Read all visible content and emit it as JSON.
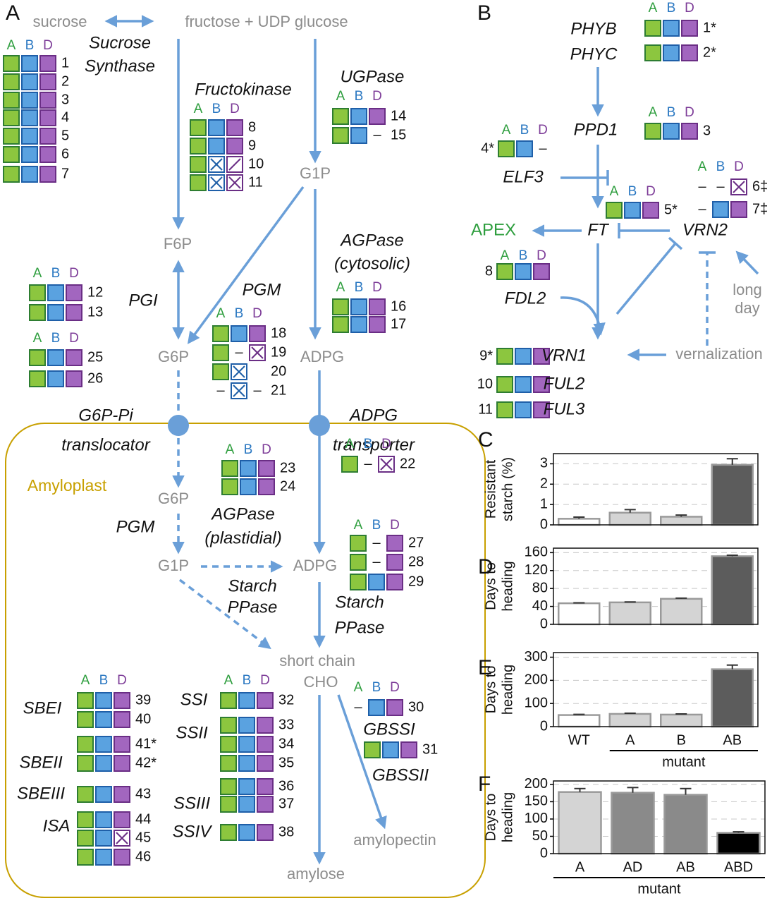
{
  "genomes": [
    {
      "label": "A",
      "text_color": "#2e9e3e",
      "fill": "#8cc63f",
      "stroke": "#2e7d32"
    },
    {
      "label": "B",
      "text_color": "#2b78c2",
      "fill": "#5aa2e0",
      "stroke": "#1f5fa8"
    },
    {
      "label": "D",
      "text_color": "#7d3c98",
      "fill": "#a266bf",
      "stroke": "#6a2e85"
    }
  ],
  "deleted_mark": "–",
  "panel_a": {
    "label": "A",
    "compartment": "Amyloplast",
    "metabolites": [
      "sucrose",
      "fructose + UDP glucose",
      "G1P",
      "F6P",
      "G6P",
      "ADPG",
      "G6P",
      "G1P",
      "ADPG",
      "short chain",
      "CHO",
      "amylopectin",
      "amylose"
    ],
    "enzymes": [
      [
        "Sucrose",
        "Synthase"
      ],
      [
        "Fructokinase"
      ],
      [
        "UGPase"
      ],
      [
        "PGI"
      ],
      [
        "PGM"
      ],
      [
        "AGPase",
        "(cytosolic)"
      ],
      [
        "G6P-Pi",
        "translocator"
      ],
      [
        "ADPG",
        "transporter"
      ],
      [
        "AGPase",
        "(plastidial)"
      ],
      [
        "PGM"
      ],
      [
        "Starch",
        "PPase"
      ],
      [
        "Starch",
        "PPase"
      ],
      [
        "SBEI"
      ],
      [
        "SBEII"
      ],
      [
        "SBEIII"
      ],
      [
        "ISA"
      ],
      [
        "SSI"
      ],
      [
        "SSII"
      ],
      [
        "SSIII"
      ],
      [
        "SSIV"
      ],
      [
        "GBSSI"
      ],
      [
        "GBSSII"
      ]
    ],
    "gene_groups": [
      {
        "rows": [
          {
            "label": "1",
            "states": [
              "present",
              "present",
              "present"
            ]
          },
          {
            "label": "2",
            "states": [
              "present",
              "present",
              "present"
            ]
          },
          {
            "label": "3",
            "states": [
              "present",
              "present",
              "present"
            ]
          },
          {
            "label": "4",
            "states": [
              "present",
              "present",
              "present"
            ]
          },
          {
            "label": "5",
            "states": [
              "present",
              "present",
              "present"
            ]
          },
          {
            "label": "6",
            "states": [
              "present",
              "present",
              "present"
            ]
          },
          {
            "label": "7",
            "states": [
              "present",
              "present",
              "present"
            ]
          }
        ]
      },
      {
        "rows": [
          {
            "label": "8",
            "states": [
              "present",
              "present",
              "present"
            ]
          },
          {
            "label": "9",
            "states": [
              "present",
              "present",
              "present"
            ]
          },
          {
            "label": "10",
            "states": [
              "present",
              "knockout",
              "partial"
            ]
          },
          {
            "label": "11",
            "states": [
              "present",
              "knockout",
              "knockout"
            ]
          }
        ]
      },
      {
        "rows": [
          {
            "label": "14",
            "states": [
              "present",
              "present",
              "present"
            ]
          },
          {
            "label": "15",
            "states": [
              "present",
              "present",
              "deleted"
            ]
          }
        ]
      },
      {
        "rows": [
          {
            "label": "12",
            "states": [
              "present",
              "present",
              "present"
            ]
          },
          {
            "label": "13",
            "states": [
              "present",
              "present",
              "present"
            ]
          }
        ]
      },
      {
        "rows": [
          {
            "label": "25",
            "states": [
              "present",
              "present",
              "present"
            ]
          },
          {
            "label": "26",
            "states": [
              "present",
              "present",
              "present"
            ]
          }
        ]
      },
      {
        "rows": [
          {
            "label": "18",
            "states": [
              "present",
              "present",
              "present"
            ]
          },
          {
            "label": "19",
            "states": [
              "present",
              "deleted",
              "knockout"
            ]
          },
          {
            "label": "20",
            "states": [
              "present",
              "knockout",
              "none"
            ]
          },
          {
            "label": "21",
            "states": [
              "deleted",
              "knockout",
              "deleted"
            ]
          }
        ]
      },
      {
        "rows": [
          {
            "label": "16",
            "states": [
              "present",
              "present",
              "present"
            ]
          },
          {
            "label": "17",
            "states": [
              "present",
              "present",
              "present"
            ]
          }
        ]
      },
      {
        "rows": [
          {
            "label": "23",
            "states": [
              "present",
              "present",
              "present"
            ]
          },
          {
            "label": "24",
            "states": [
              "present",
              "present",
              "present"
            ]
          }
        ]
      },
      {
        "rows": [
          {
            "label": "22",
            "states": [
              "present",
              "deleted",
              "knockout"
            ]
          }
        ]
      },
      {
        "rows": [
          {
            "label": "27",
            "states": [
              "present",
              "deleted",
              "present"
            ]
          },
          {
            "label": "28",
            "states": [
              "present",
              "deleted",
              "present"
            ]
          },
          {
            "label": "29",
            "states": [
              "present",
              "present",
              "present"
            ]
          }
        ]
      },
      {
        "rows": [
          {
            "label": "39",
            "states": [
              "present",
              "present",
              "present"
            ]
          },
          {
            "label": "40",
            "states": [
              "present",
              "present",
              "present"
            ]
          },
          {
            "label": "41*",
            "states": [
              "present",
              "present",
              "present"
            ]
          },
          {
            "label": "42*",
            "states": [
              "present",
              "present",
              "present"
            ]
          },
          {
            "label": "43",
            "states": [
              "present",
              "present",
              "present"
            ]
          },
          {
            "label": "44",
            "states": [
              "present",
              "present",
              "present"
            ]
          },
          {
            "label": "45",
            "states": [
              "present",
              "present",
              "knockout"
            ]
          },
          {
            "label": "46",
            "states": [
              "present",
              "present",
              "present"
            ]
          }
        ]
      },
      {
        "rows": [
          {
            "label": "32",
            "states": [
              "present",
              "present",
              "present"
            ]
          },
          {
            "label": "33",
            "states": [
              "present",
              "present",
              "present"
            ]
          },
          {
            "label": "34",
            "states": [
              "present",
              "present",
              "present"
            ]
          },
          {
            "label": "35",
            "states": [
              "present",
              "present",
              "present"
            ]
          },
          {
            "label": "36",
            "states": [
              "present",
              "present",
              "present"
            ]
          },
          {
            "label": "37",
            "states": [
              "present",
              "present",
              "present"
            ]
          },
          {
            "label": "38",
            "states": [
              "present",
              "present",
              "present"
            ]
          }
        ]
      },
      {
        "rows": [
          {
            "label": "30",
            "states": [
              "deleted",
              "present",
              "present"
            ]
          }
        ]
      },
      {
        "rows": [
          {
            "label": "31",
            "states": [
              "present",
              "present",
              "present"
            ]
          }
        ]
      }
    ]
  },
  "panel_b": {
    "label": "B",
    "genes": [
      "PHYB",
      "PHYC",
      "PPD1",
      "ELF3",
      "FT",
      "VRN2",
      "FDL2"
    ],
    "apex": "APEX",
    "signals": [
      [
        "long",
        "day"
      ],
      [
        "vernalization"
      ]
    ],
    "gene_groups": [
      {
        "rows": [
          {
            "label": "1*",
            "states": [
              "present",
              "present",
              "present"
            ]
          },
          {
            "label": "2*",
            "states": [
              "present",
              "present",
              "present"
            ]
          }
        ]
      },
      {
        "rows": [
          {
            "label": "3",
            "states": [
              "present",
              "present",
              "present"
            ]
          }
        ]
      },
      {
        "rows": [
          {
            "label": "4*",
            "states": [
              "present",
              "present",
              "deleted"
            ]
          }
        ]
      },
      {
        "rows": [
          {
            "label": "5*",
            "states": [
              "present",
              "present",
              "present"
            ]
          }
        ]
      },
      {
        "rows": [
          {
            "label": "6‡",
            "states": [
              "deleted",
              "deleted",
              "knockout"
            ]
          },
          {
            "label": "7‡",
            "states": [
              "deleted",
              "present",
              "present"
            ]
          }
        ]
      },
      {
        "rows": [
          {
            "label": "8",
            "states": [
              "present",
              "present",
              "present"
            ]
          }
        ]
      },
      {
        "rows": [
          {
            "label": "9*",
            "states": [
              "present",
              "present",
              "present"
            ],
            "gene": "VRN1"
          },
          {
            "label": "10",
            "states": [
              "present",
              "present",
              "present"
            ],
            "gene": "FUL2"
          },
          {
            "label": "11",
            "states": [
              "present",
              "present",
              "present"
            ],
            "gene": "FUL3"
          }
        ]
      }
    ]
  },
  "chart_data": [
    {
      "type": "bar",
      "panel_label": "C",
      "ylabel": [
        "Resistant",
        "starch (%)"
      ],
      "values": [
        0.3,
        0.6,
        0.4,
        2.95
      ],
      "errors": [
        0.08,
        0.15,
        0.08,
        0.3
      ],
      "colors": [
        "#ffffff",
        "#d4d4d4",
        "#d4d4d4",
        "#5c5c5c"
      ],
      "ylim": [
        0,
        3.5
      ],
      "yticks": [
        0,
        1,
        2,
        3
      ],
      "grid": true
    },
    {
      "type": "bar",
      "panel_label": "D",
      "ylabel": [
        "Days to",
        "heading"
      ],
      "values": [
        47,
        49,
        57,
        152
      ],
      "errors": [
        1,
        1,
        1.5,
        2
      ],
      "colors": [
        "#ffffff",
        "#d4d4d4",
        "#d4d4d4",
        "#5c5c5c"
      ],
      "ylim": [
        0,
        170
      ],
      "yticks": [
        0,
        40,
        80,
        120,
        160
      ],
      "grid": true
    },
    {
      "type": "bar",
      "panel_label": "E",
      "ylabel": [
        "Days to",
        "heading"
      ],
      "categories": [
        "WT",
        "A",
        "B",
        "AB"
      ],
      "group_label": "mutant",
      "values": [
        50,
        55,
        52,
        248
      ],
      "errors": [
        3,
        3,
        3,
        18
      ],
      "colors": [
        "#ffffff",
        "#d4d4d4",
        "#d4d4d4",
        "#5c5c5c"
      ],
      "ylim": [
        0,
        320
      ],
      "yticks": [
        0,
        100,
        200,
        300
      ],
      "grid": true
    },
    {
      "type": "bar",
      "panel_label": "F",
      "ylabel": [
        "Days to",
        "heading"
      ],
      "categories": [
        "A",
        "AD",
        "AB",
        "ABD"
      ],
      "group_label": "mutant",
      "values": [
        178,
        176,
        170,
        60
      ],
      "errors": [
        10,
        15,
        18,
        3
      ],
      "colors": [
        "#d4d4d4",
        "#8a8a8a",
        "#8a8a8a",
        "#000000"
      ],
      "ylim": [
        0,
        210
      ],
      "yticks": [
        0,
        50,
        100,
        150,
        200
      ],
      "grid": true
    }
  ]
}
